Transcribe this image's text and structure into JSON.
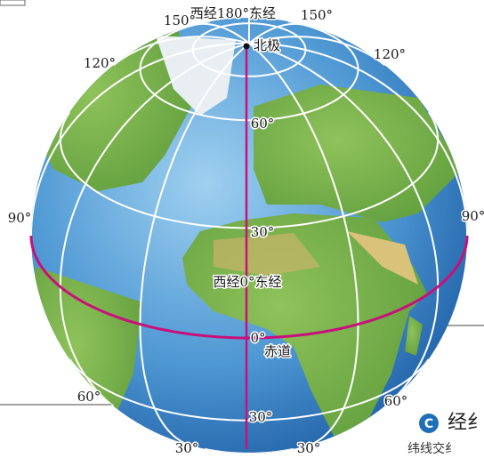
{
  "globe": {
    "labels": {
      "meridian_top": "西经180°东经",
      "lon_150_left": "150°",
      "lon_150_right": "150°",
      "north_pole": "北极",
      "lon_120_left": "120°",
      "lon_120_right": "120°",
      "lat_60_center": "60°",
      "lon_90_left": "90°",
      "lon_90_right": "90°",
      "lat_30_center": "30°",
      "meridian_center": "西经0°东经",
      "lat_0": "0°",
      "equator": "赤道",
      "lon_60_left": "60°",
      "lon_60_right": "60°",
      "lat_30s_center": "30°",
      "lon_30_left": "30°",
      "lon_30_right": "30°"
    },
    "corner": {
      "badge": "C",
      "heading": "经纟",
      "subtext": "纬线交纟"
    }
  }
}
